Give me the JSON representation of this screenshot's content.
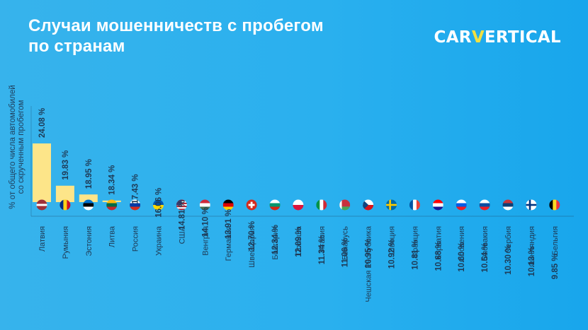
{
  "title_lines": [
    "Случаи мошенничеств с пробегом",
    "по странам"
  ],
  "logo": {
    "prefix": "CAR",
    "highlight": "V",
    "suffix": "ERTICAL"
  },
  "colors": {
    "bar": "#fde589",
    "bar_bottom": "#f9d96b",
    "text_dark": "#1e3a56",
    "axis": "#1e3a56",
    "title": "#ffffff",
    "logo_accent": "#f2e040"
  },
  "chart_data": {
    "type": "bar",
    "ylabel": "% от общего числа автомобилей со скрученным пробегом",
    "categories": [
      "Латвия",
      "Румыния",
      "Эстония",
      "Литва",
      "Россия",
      "Украина",
      "США",
      "Венгрия",
      "Германия",
      "Швейцария",
      "Болгария",
      "Польша",
      "Италия",
      "Беларусь",
      "Чешская Республика",
      "Швеция",
      "Франция",
      "Хорватия",
      "Словения",
      "Словакия",
      "Сербия",
      "Финляндия",
      "Бельгия"
    ],
    "values": [
      24.08,
      19.83,
      18.95,
      18.34,
      17.43,
      16.06,
      14.81,
      14.1,
      13.91,
      12.7,
      12.34,
      12.09,
      11.34,
      11.06,
      10.95,
      10.92,
      10.81,
      10.68,
      10.6,
      10.54,
      10.3,
      10.13,
      9.85
    ],
    "labels": [
      "24.08 %",
      "19.83 %",
      "18.95 %",
      "18.34 %",
      "17.43 %",
      "16.06 %",
      "14.81 %",
      "14.10 %",
      "13.91 %",
      "12.70 %",
      "12.34 %",
      "12.09 %",
      "11.34 %",
      "11.06 %",
      "10.95 %",
      "10.92 %",
      "10.81 %",
      "10.68 %",
      "10.60 %",
      "10.54 %",
      "10.30 %",
      "10.13 %",
      "9.85 %"
    ],
    "flag_icons": [
      "flag-latvia-icon",
      "flag-romania-icon",
      "flag-estonia-icon",
      "flag-lithuania-icon",
      "flag-russia-icon",
      "flag-ukraine-icon",
      "flag-usa-icon",
      "flag-hungary-icon",
      "flag-germany-icon",
      "flag-switzerland-icon",
      "flag-bulgaria-icon",
      "flag-poland-icon",
      "flag-italy-icon",
      "flag-belarus-icon",
      "flag-czech-republic-icon",
      "flag-sweden-icon",
      "flag-france-icon",
      "flag-croatia-icon",
      "flag-slovenia-icon",
      "flag-slovakia-icon",
      "flag-serbia-icon",
      "flag-finland-icon",
      "flag-belgium-icon"
    ],
    "legend": "none",
    "grid": false
  }
}
